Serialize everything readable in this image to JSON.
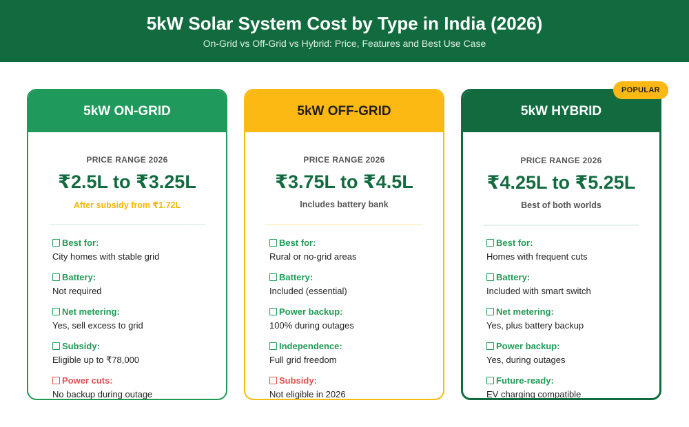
{
  "header": {
    "title": "5kW Solar System Cost by Type in India (2026)",
    "subtitle": "On-Grid vs Off-Grid vs Hybrid: Price, Features and Best Use Case"
  },
  "badge": "POPULAR",
  "colors": {
    "dark_green": "#126b3f",
    "green": "#1f9a5c",
    "yellow": "#fdb913",
    "red": "#e05252"
  },
  "cards": [
    {
      "title": "5kW ON-GRID",
      "price_label": "PRICE RANGE 2026",
      "price": "₹2.5L to ₹3.25L",
      "note": "After subsidy from ₹1.72L",
      "features": [
        {
          "icon": "check-icon",
          "title": "Best for:",
          "value": "City homes with stable grid"
        },
        {
          "icon": "check-icon",
          "title": "Battery:",
          "value": "Not required"
        },
        {
          "icon": "check-icon",
          "title": "Net metering:",
          "value": "Yes, sell excess to grid"
        },
        {
          "icon": "check-icon",
          "title": "Subsidy:",
          "value": "Eligible up to ₹78,000"
        },
        {
          "icon": "cross-icon",
          "title": "Power cuts:",
          "value": "No backup during outage"
        }
      ]
    },
    {
      "title": "5kW OFF-GRID",
      "price_label": "PRICE RANGE 2026",
      "price": "₹3.75L to ₹4.5L",
      "note": "Includes battery bank",
      "features": [
        {
          "icon": "check-icon",
          "title": "Best for:",
          "value": "Rural or no-grid areas"
        },
        {
          "icon": "check-icon",
          "title": "Battery:",
          "value": "Included (essential)"
        },
        {
          "icon": "check-icon",
          "title": "Power backup:",
          "value": "100% during outages"
        },
        {
          "icon": "check-icon",
          "title": "Independence:",
          "value": "Full grid freedom"
        },
        {
          "icon": "cross-icon",
          "title": "Subsidy:",
          "value": "Not eligible in 2026"
        }
      ]
    },
    {
      "title": "5kW HYBRID",
      "price_label": "PRICE RANGE 2026",
      "price": "₹4.25L to ₹5.25L",
      "note": "Best of both worlds",
      "features": [
        {
          "icon": "check-icon",
          "title": "Best for:",
          "value": "Homes with frequent cuts"
        },
        {
          "icon": "check-icon",
          "title": "Battery:",
          "value": "Included with smart switch"
        },
        {
          "icon": "check-icon",
          "title": "Net metering:",
          "value": "Yes, plus battery backup"
        },
        {
          "icon": "check-icon",
          "title": "Power backup:",
          "value": "Yes, during outages"
        },
        {
          "icon": "check-icon",
          "title": "Future-ready:",
          "value": "EV charging compatible"
        }
      ]
    }
  ]
}
